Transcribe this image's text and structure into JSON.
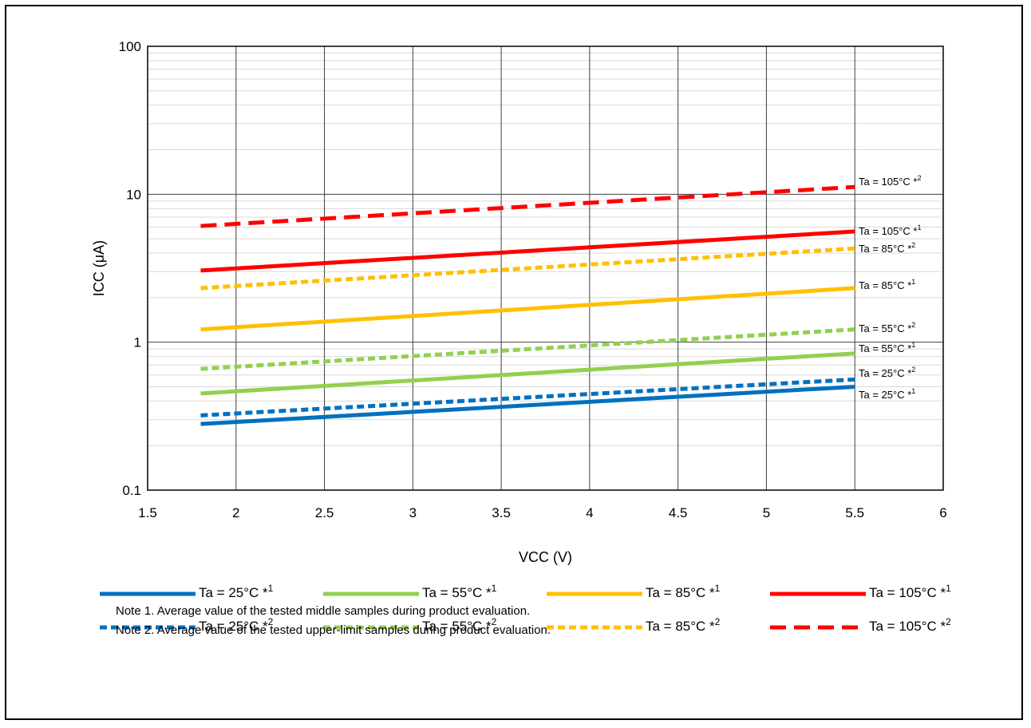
{
  "chart_data": {
    "type": "line",
    "xlabel": "VCC (V)",
    "ylabel": "ICC (μA)",
    "xlim": [
      1.5,
      6
    ],
    "ylim": [
      0.1,
      100
    ],
    "yscale": "log",
    "x_ticks": [
      "1.5",
      "2",
      "2.5",
      "3",
      "3.5",
      "4",
      "4.5",
      "5",
      "5.5",
      "6"
    ],
    "y_ticks": [
      "0.1",
      "1",
      "10",
      "100"
    ],
    "grid": true,
    "legend_position": "bottom",
    "series": [
      {
        "name": "Ta = 25°C *",
        "note_ref": "1",
        "color": "#0070C0",
        "dash": "solid",
        "x": [
          1.8,
          5.5
        ],
        "y": [
          0.28,
          0.5
        ]
      },
      {
        "name": "Ta = 55°C *",
        "note_ref": "1",
        "color": "#92D050",
        "dash": "solid",
        "x": [
          1.8,
          5.5
        ],
        "y": [
          0.45,
          0.84
        ]
      },
      {
        "name": "Ta = 85°C *",
        "note_ref": "1",
        "color": "#FFC000",
        "dash": "solid",
        "x": [
          1.8,
          5.5
        ],
        "y": [
          1.22,
          2.32
        ]
      },
      {
        "name": "Ta = 105°C *",
        "note_ref": "1",
        "color": "#FF0000",
        "dash": "solid",
        "x": [
          1.8,
          5.5
        ],
        "y": [
          3.05,
          5.6
        ]
      },
      {
        "name": "Ta = 25°C *",
        "note_ref": "2",
        "color": "#0070C0",
        "dash": "short",
        "x": [
          1.8,
          5.5
        ],
        "y": [
          0.32,
          0.56
        ]
      },
      {
        "name": "Ta = 55°C *",
        "note_ref": "2",
        "color": "#92D050",
        "dash": "short",
        "x": [
          1.8,
          5.5
        ],
        "y": [
          0.66,
          1.22
        ]
      },
      {
        "name": "Ta = 85°C *",
        "note_ref": "2",
        "color": "#FFC000",
        "dash": "short",
        "x": [
          1.8,
          5.5
        ],
        "y": [
          2.32,
          4.3
        ]
      },
      {
        "name": "Ta = 105°C *",
        "note_ref": "2",
        "color": "#FF0000",
        "dash": "long",
        "x": [
          1.8,
          5.5
        ],
        "y": [
          6.1,
          11.2
        ]
      }
    ],
    "notes": [
      "Note 1.  Average value of the tested middle samples during product evaluation.",
      "Note 2.  Average value of the tested upper-limit samples during product evaluation."
    ]
  }
}
